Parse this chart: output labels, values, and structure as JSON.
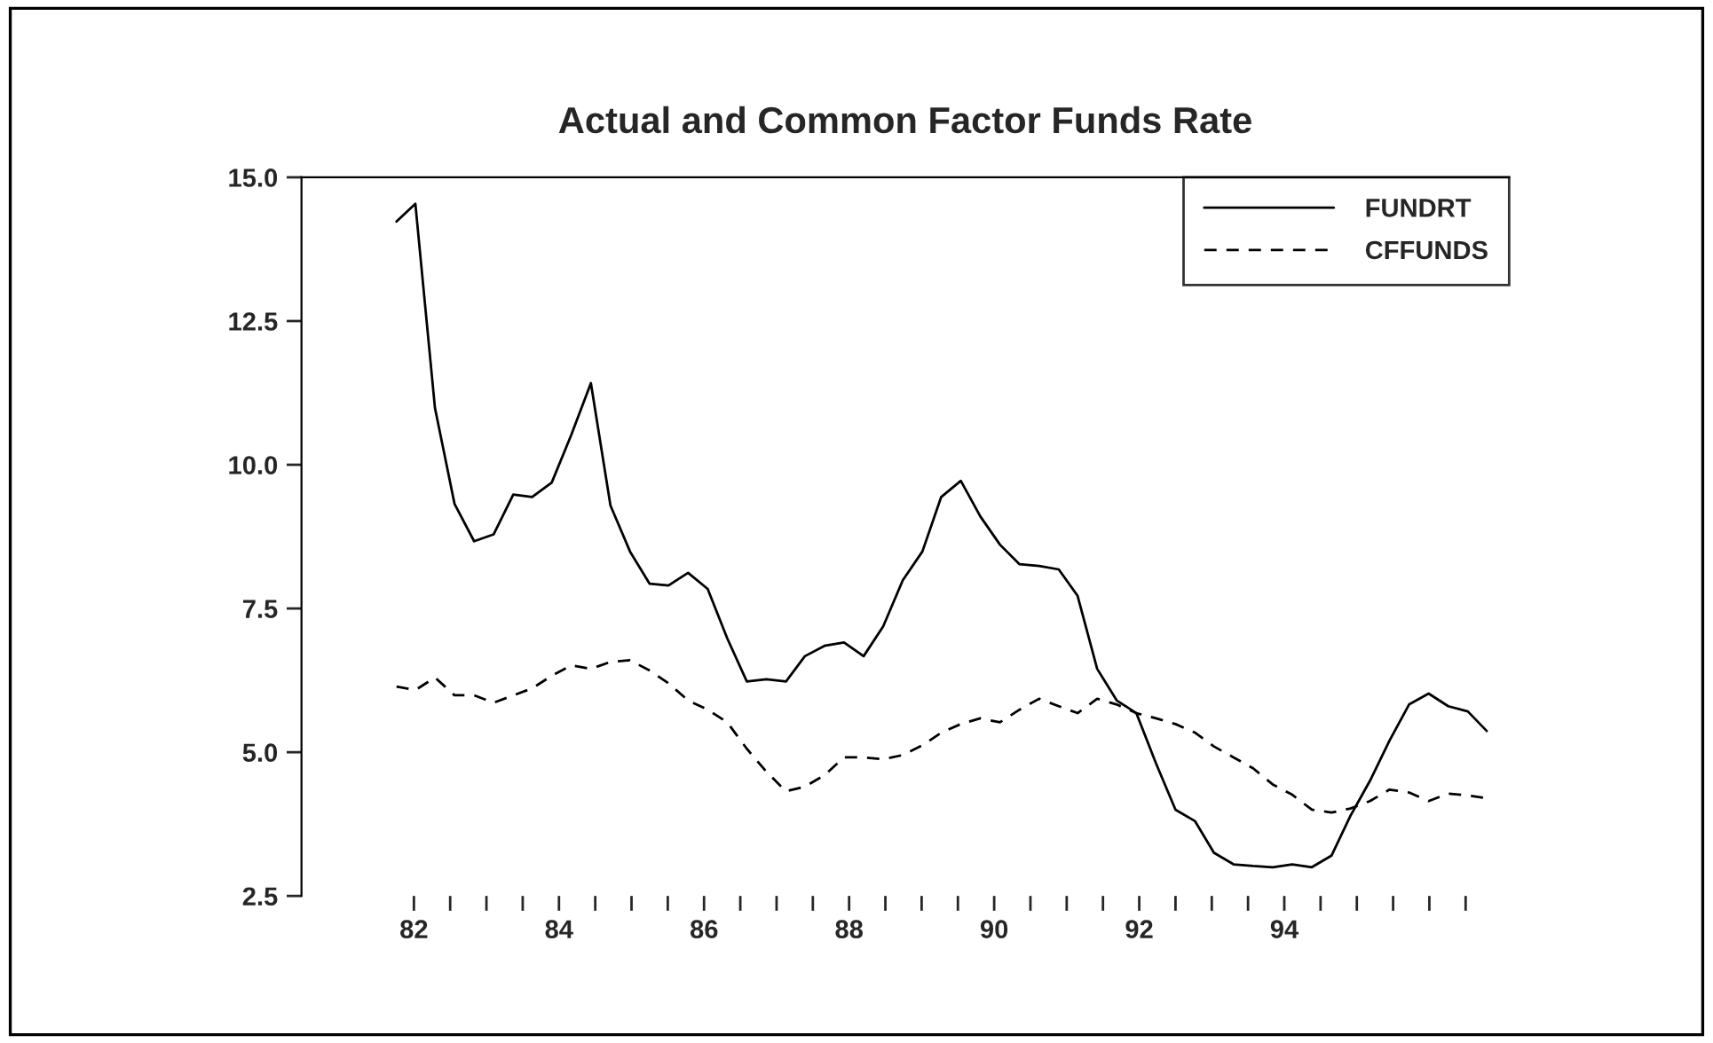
{
  "chart_data": {
    "type": "line",
    "title": "Actual and Common Factor Funds Rate",
    "x": [
      81.76,
      82.02,
      82.29,
      82.56,
      82.83,
      83.1,
      83.37,
      83.63,
      83.9,
      84.17,
      84.44,
      84.71,
      84.98,
      85.25,
      85.51,
      85.78,
      86.05,
      86.32,
      86.59,
      86.86,
      87.13,
      87.39,
      87.66,
      87.93,
      88.2,
      88.47,
      88.74,
      89.01,
      89.27,
      89.54,
      89.81,
      90.08,
      90.35,
      90.62,
      90.89,
      91.15,
      91.42,
      91.69,
      91.96,
      92.23,
      92.5,
      92.77,
      93.03,
      93.3,
      93.57,
      93.84,
      94.11,
      94.38,
      94.65,
      94.91,
      95.18,
      95.45,
      95.72,
      95.99,
      96.26,
      96.53,
      96.79
    ],
    "series": [
      {
        "name": "FUNDRT",
        "color": "#000000",
        "line_style": "solid",
        "values": [
          14.23,
          14.54,
          10.99,
          9.32,
          8.67,
          8.79,
          9.48,
          9.44,
          9.69,
          10.52,
          11.42,
          9.29,
          8.49,
          7.93,
          7.9,
          8.12,
          7.84,
          6.98,
          6.23,
          6.27,
          6.23,
          6.67,
          6.85,
          6.91,
          6.67,
          7.19,
          7.99,
          8.49,
          9.44,
          9.72,
          9.1,
          8.61,
          8.27,
          8.24,
          8.18,
          7.72,
          6.45,
          5.9,
          5.68,
          4.81,
          4.0,
          3.8,
          3.25,
          3.05,
          3.02,
          3.0,
          3.05,
          3.0,
          3.2,
          3.89,
          4.5,
          5.2,
          5.83,
          6.02,
          5.8,
          5.71,
          5.37
        ]
      },
      {
        "name": "CFFUNDS",
        "color": "#000000",
        "line_style": "dashed",
        "values": [
          6.14,
          6.08,
          6.3,
          5.99,
          5.99,
          5.86,
          5.99,
          6.11,
          6.33,
          6.51,
          6.45,
          6.57,
          6.6,
          6.42,
          6.2,
          5.9,
          5.74,
          5.52,
          5.06,
          4.66,
          4.32,
          4.4,
          4.6,
          4.91,
          4.91,
          4.88,
          4.95,
          5.12,
          5.34,
          5.49,
          5.59,
          5.52,
          5.74,
          5.93,
          5.8,
          5.68,
          5.93,
          5.83,
          5.68,
          5.59,
          5.49,
          5.34,
          5.1,
          4.91,
          4.72,
          4.44,
          4.26,
          4.0,
          3.95,
          4.02,
          4.15,
          4.35,
          4.3,
          4.15,
          4.28,
          4.25,
          4.2
        ]
      }
    ],
    "xlim": [
      80.45,
      97.1
    ],
    "xticks": [
      {
        "value": 82,
        "label": "82"
      },
      {
        "value": 82.5,
        "label": null
      },
      {
        "value": 83,
        "label": null
      },
      {
        "value": 83.5,
        "label": null
      },
      {
        "value": 84,
        "label": "84"
      },
      {
        "value": 84.5,
        "label": null
      },
      {
        "value": 85,
        "label": null
      },
      {
        "value": 85.5,
        "label": null
      },
      {
        "value": 86,
        "label": "86"
      },
      {
        "value": 86.5,
        "label": null
      },
      {
        "value": 87,
        "label": null
      },
      {
        "value": 87.5,
        "label": null
      },
      {
        "value": 88,
        "label": "88"
      },
      {
        "value": 88.5,
        "label": null
      },
      {
        "value": 89,
        "label": null
      },
      {
        "value": 89.5,
        "label": null
      },
      {
        "value": 90,
        "label": "90"
      },
      {
        "value": 90.5,
        "label": null
      },
      {
        "value": 91,
        "label": null
      },
      {
        "value": 91.5,
        "label": null
      },
      {
        "value": 92,
        "label": "92"
      },
      {
        "value": 92.5,
        "label": null
      },
      {
        "value": 93,
        "label": null
      },
      {
        "value": 93.5,
        "label": null
      },
      {
        "value": 94,
        "label": "94"
      },
      {
        "value": 94.5,
        "label": null
      },
      {
        "value": 95,
        "label": null
      },
      {
        "value": 95.5,
        "label": null
      },
      {
        "value": 96,
        "label": null
      },
      {
        "value": 96.5,
        "label": null
      }
    ],
    "ylim": [
      2.5,
      15
    ],
    "yticks": [
      {
        "value": 2.5,
        "label": "2.5"
      },
      {
        "value": 5,
        "label": "5.0"
      },
      {
        "value": 7.5,
        "label": "7.5"
      },
      {
        "value": 10,
        "label": "10.0"
      },
      {
        "value": 12.5,
        "label": "12.5"
      },
      {
        "value": 15,
        "label": "15.0"
      }
    ],
    "grid": false,
    "legend": "top right"
  }
}
